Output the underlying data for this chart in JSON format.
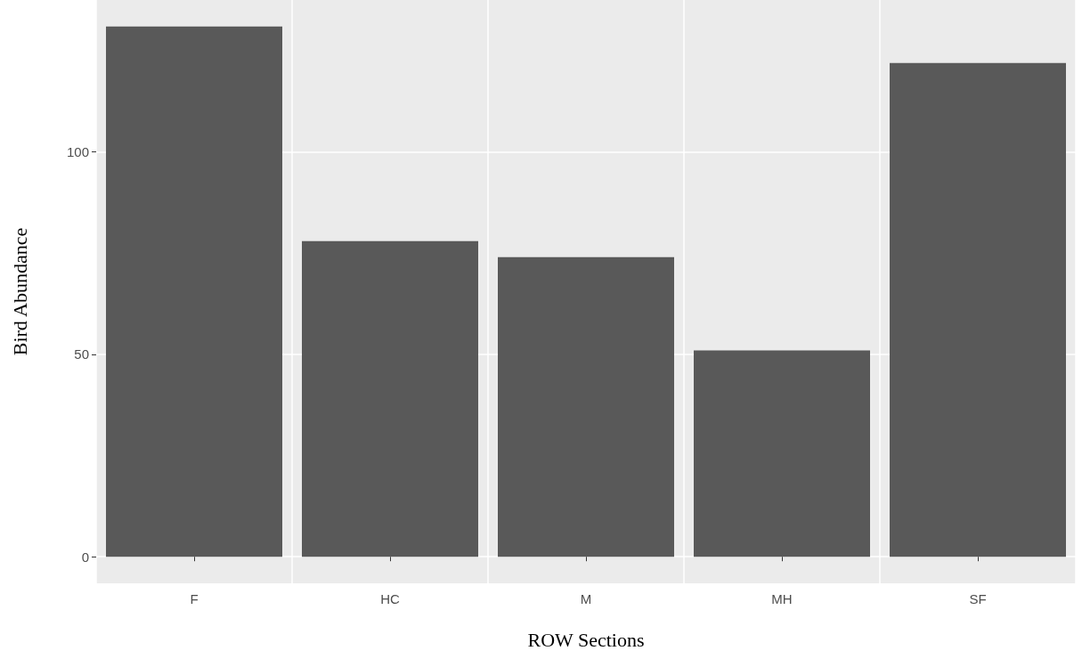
{
  "chart_data": {
    "type": "bar",
    "xlabel": "ROW Sections",
    "ylabel": "Bird Abundance",
    "categories": [
      "F",
      "HC",
      "M",
      "MH",
      "SF"
    ],
    "values": [
      131,
      78,
      74,
      51,
      122
    ],
    "color": "#595959",
    "ylim": [
      -6.55,
      137.55
    ],
    "yticks": [
      0,
      50,
      100
    ],
    "grid": true
  }
}
